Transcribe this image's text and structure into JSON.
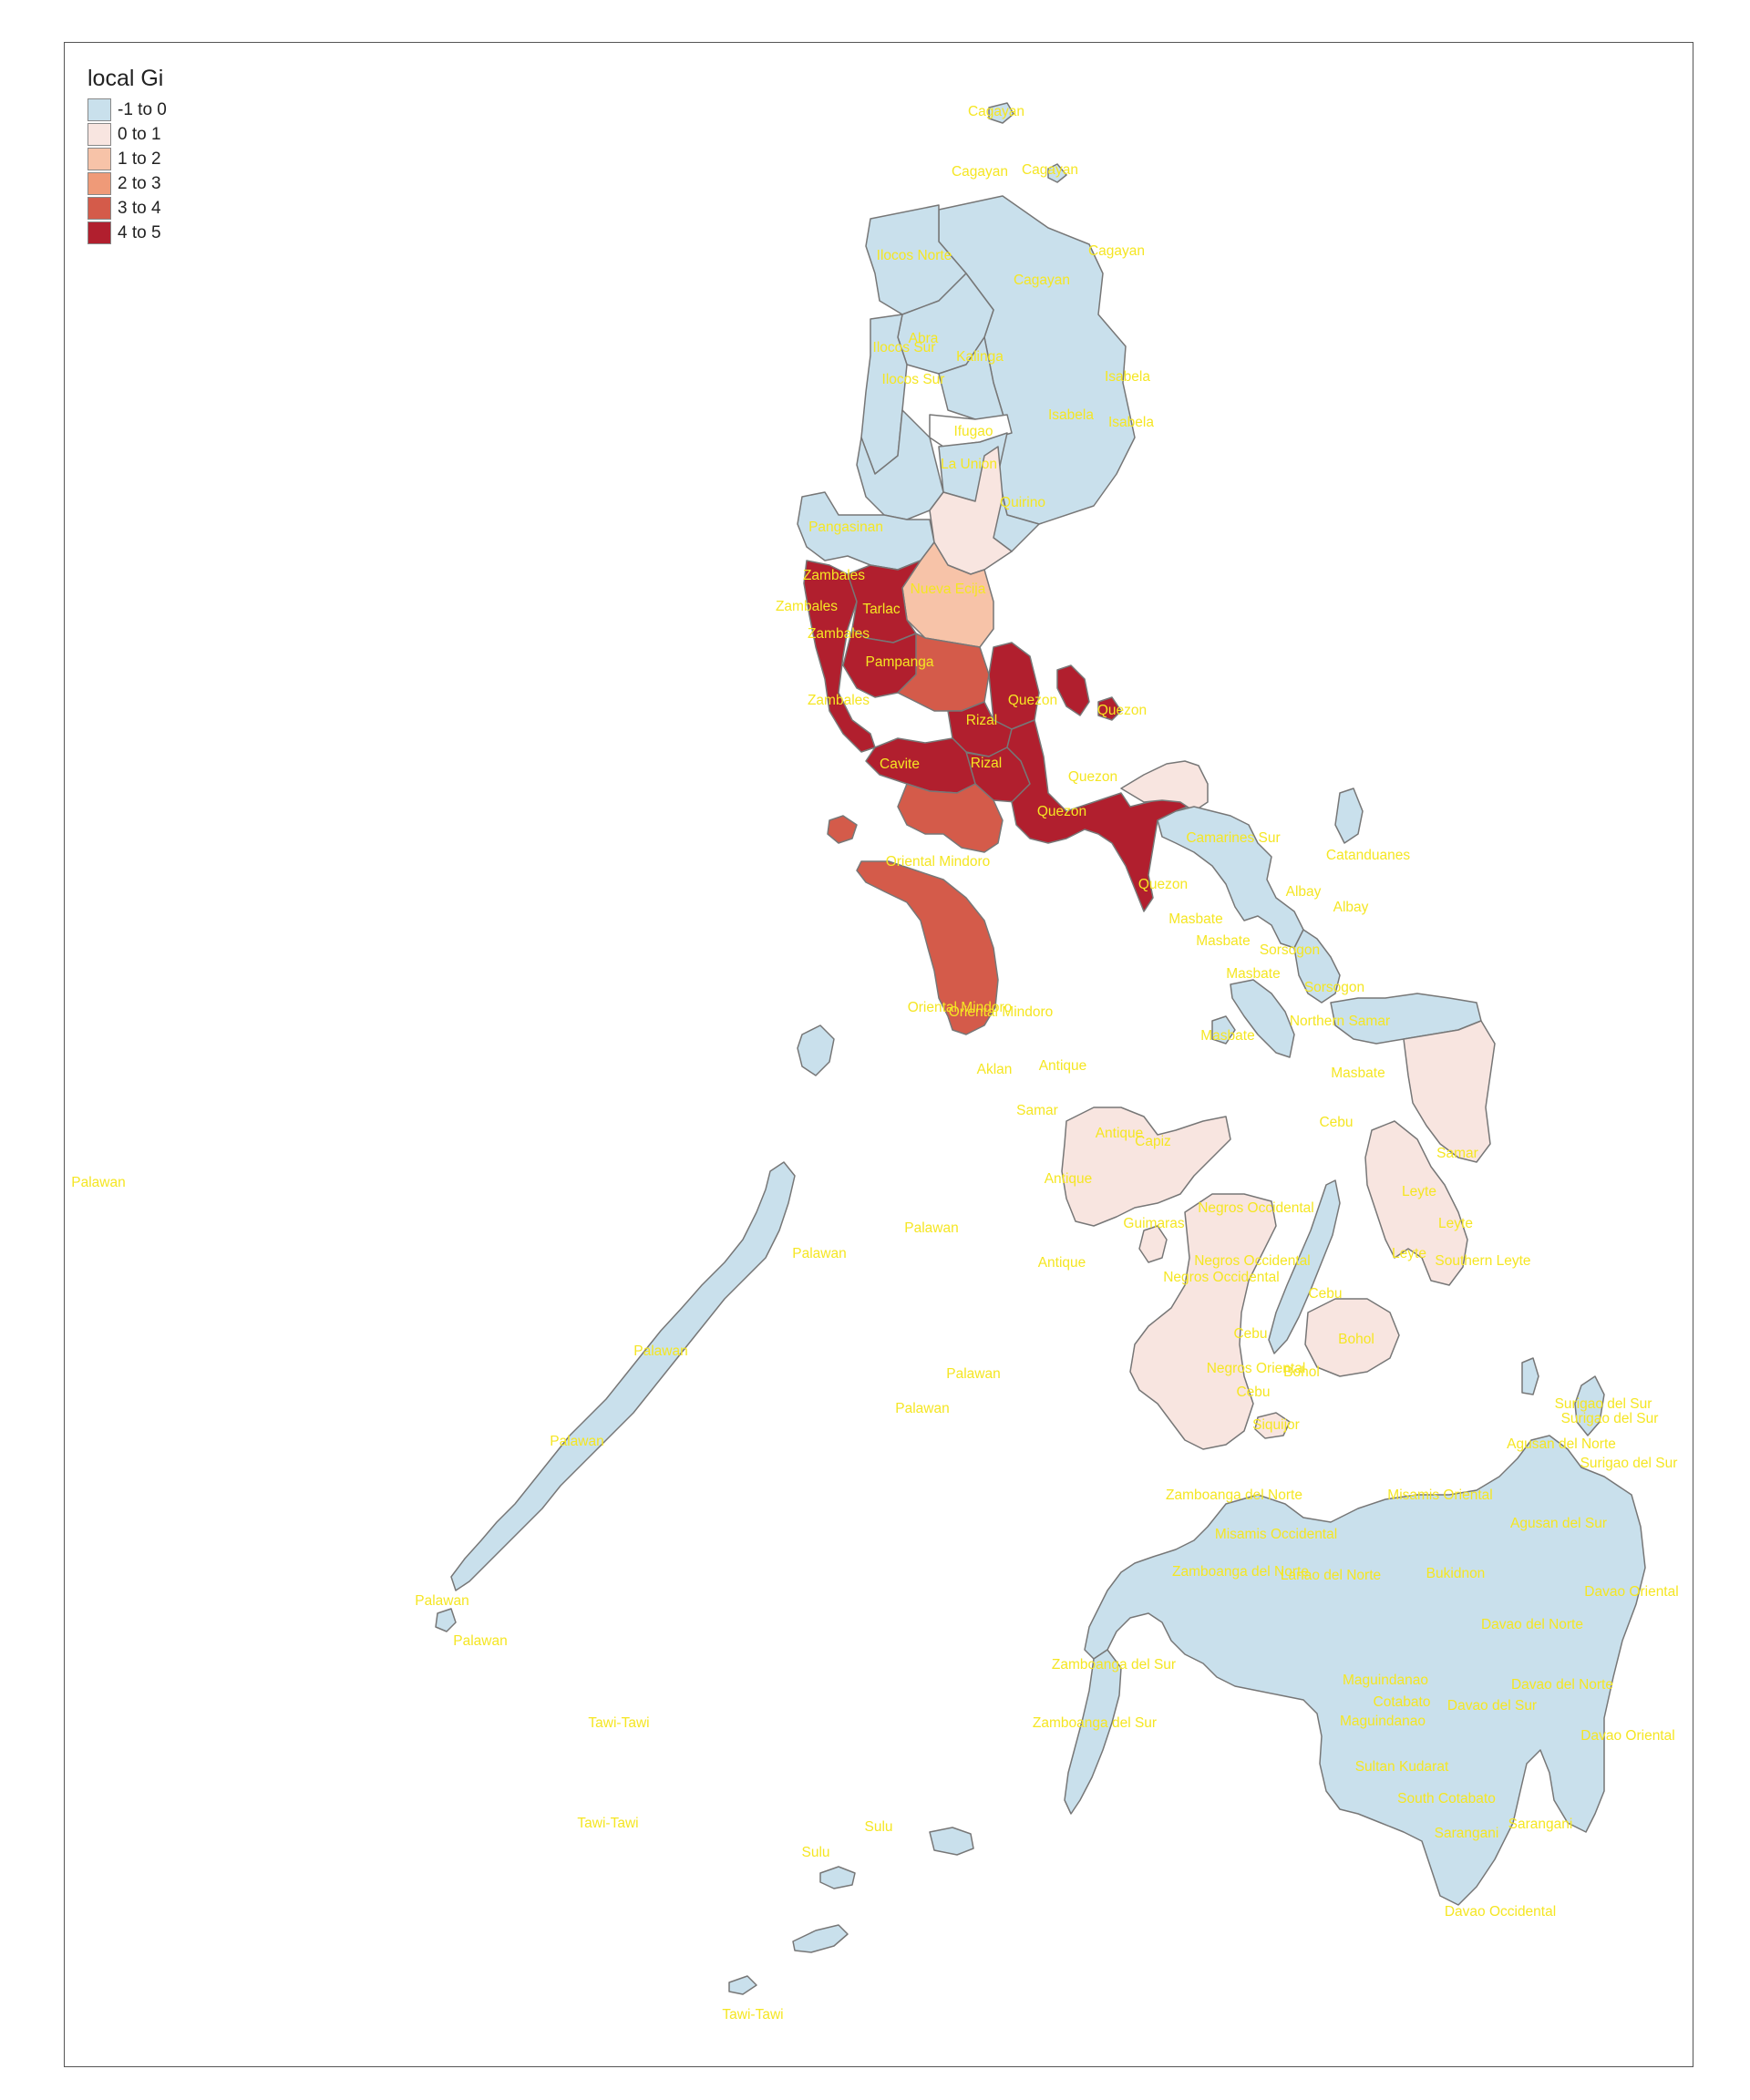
{
  "legend": {
    "title": "local Gi",
    "classes": [
      {
        "label": "-1 to 0",
        "color": "#c9e0ec"
      },
      {
        "label": "0 to 1",
        "color": "#f8e5e0"
      },
      {
        "label": "1 to 2",
        "color": "#f7c3a8"
      },
      {
        "label": "2 to 3",
        "color": "#ef9a78"
      },
      {
        "label": "3 to 4",
        "color": "#d45b4a"
      },
      {
        "label": "4 to 5",
        "color": "#b11f2e"
      }
    ]
  },
  "map_style": {
    "border_color": "#777777",
    "label_color": "#f5e623"
  },
  "province_labels": [
    "Cagayan",
    "Cagayan",
    "Cagayan",
    "Cagayan",
    "Cagayan",
    "Ilocos Norte",
    "Ilocos Sur",
    "Abra",
    "Kalinga",
    "Ilocos Sur",
    "Isabela",
    "Isabela",
    "Isabela",
    "Ifugao",
    "La Union",
    "Quirino",
    "Pangasinan",
    "Zambales",
    "Tarlac",
    "Zambales",
    "Nueva Ecija",
    "Zambales",
    "Pampanga",
    "Zambales",
    "Quezon",
    "Quezon",
    "Rizal",
    "Cavite",
    "Rizal",
    "Quezon",
    "Quezon",
    "Camarines Sur",
    "Catanduanes",
    "Oriental Mindoro",
    "Quezon",
    "Albay",
    "Albay",
    "Masbate",
    "Masbate",
    "Sorsogon",
    "Masbate",
    "Sorsogon",
    "Oriental Mindoro",
    "Northern Samar",
    "Oriental Mindoro",
    "Masbate",
    "Aklan",
    "Antique",
    "Samar",
    "Masbate",
    "Antique",
    "Capiz",
    "Cebu",
    "Samar",
    "Antique",
    "Palawan",
    "Negros Occidental",
    "Leyte",
    "Guimaras",
    "Leyte",
    "Palawan",
    "Palawan",
    "Negros Occidental",
    "Leyte",
    "Southern Leyte",
    "Antique",
    "Negros Occidental",
    "Cebu",
    "Cebu",
    "Bohol",
    "Palawan",
    "Palawan",
    "Negros Oriental",
    "Bohol",
    "Cebu",
    "Palawan",
    "Siquijor",
    "Surigao del Sur",
    "Surigao del Sur",
    "Palawan",
    "Agusan del Norte",
    "Surigao del Sur",
    "Zamboanga del Norte",
    "Misamis Oriental",
    "Agusan del Sur",
    "Misamis Occidental",
    "Zamboanga del Norte",
    "Lanao del Norte",
    "Bukidnon",
    "Davao Oriental",
    "Davao del Norte",
    "Palawan",
    "Palawan",
    "Zamboanga del Sur",
    "Maguindanao",
    "Cotabato",
    "Davao del Norte",
    "Davao del Sur",
    "Zamboanga del Sur",
    "Maguindanao",
    "Davao Oriental",
    "Tawi-Tawi",
    "Sultan Kudarat",
    "South Cotabato",
    "Sarangani",
    "Tawi-Tawi",
    "Sulu",
    "Sarangani",
    "Sulu",
    "Davao Occidental",
    "Tawi-Tawi"
  ]
}
